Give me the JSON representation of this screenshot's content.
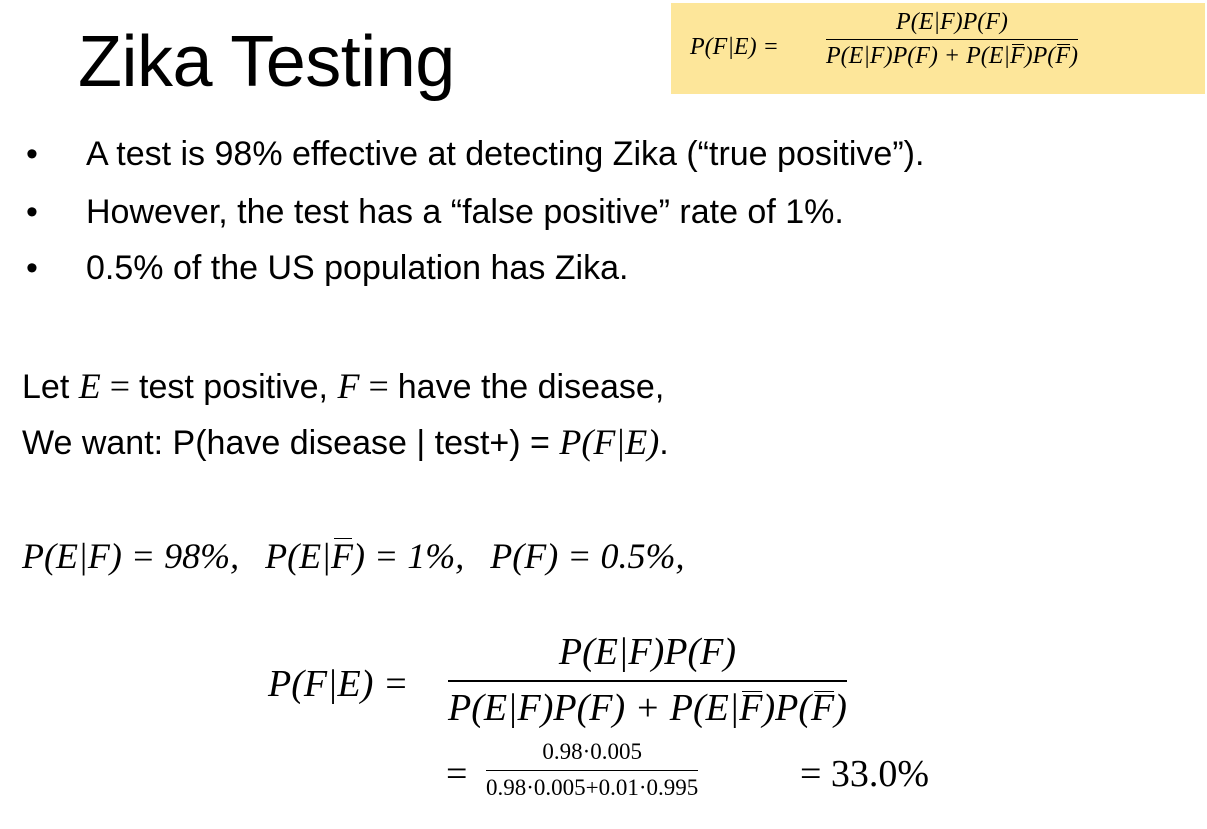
{
  "title": "Zika Testing",
  "bayes_box": {
    "lhs": "P(F|E) =",
    "numerator": "P(E|F)P(F)",
    "denominator_part1": "P(E|F)P(F) + P(E|",
    "denominator_bar1": "F",
    "denominator_part2": ")P(",
    "denominator_bar2": "F",
    "denominator_part3": ")",
    "background": "#fde69a"
  },
  "bullets": [
    "A test is 98% effective at detecting Zika (“true positive”).",
    "However, the test has a “false positive” rate of 1%.",
    "0.5% of the US population has Zika."
  ],
  "bullet_marker": "•",
  "definition": {
    "let": "Let ",
    "e_var": "E",
    "eq1": " = ",
    "test_positive": "test positive, ",
    "f_var": "F",
    "eq2": " = ",
    "have_disease": "have the disease,"
  },
  "want": {
    "prefix": "We want: P(have disease | test+) = ",
    "target": "P(F|E)",
    "suffix": "."
  },
  "given": {
    "p1": "P(E|F) = 98%,",
    "p2_a": "P(E|",
    "p2_bar": "F",
    "p2_b": ") = 1%,",
    "p3": "P(F) = 0.5%,"
  },
  "computation": {
    "lhs": "P(F|E) =",
    "numerator": "P(E|F)P(F)",
    "denominator_part1": "P(E|F)P(F) + P(E|",
    "denominator_bar1": "F",
    "denominator_part2": ")P(",
    "denominator_bar2": "F",
    "denominator_part3": ")",
    "equals": "=",
    "numeric_numerator": "0.98·0.005",
    "numeric_denominator": "0.98·0.005+0.01·0.995",
    "result": "= 33.0%"
  }
}
